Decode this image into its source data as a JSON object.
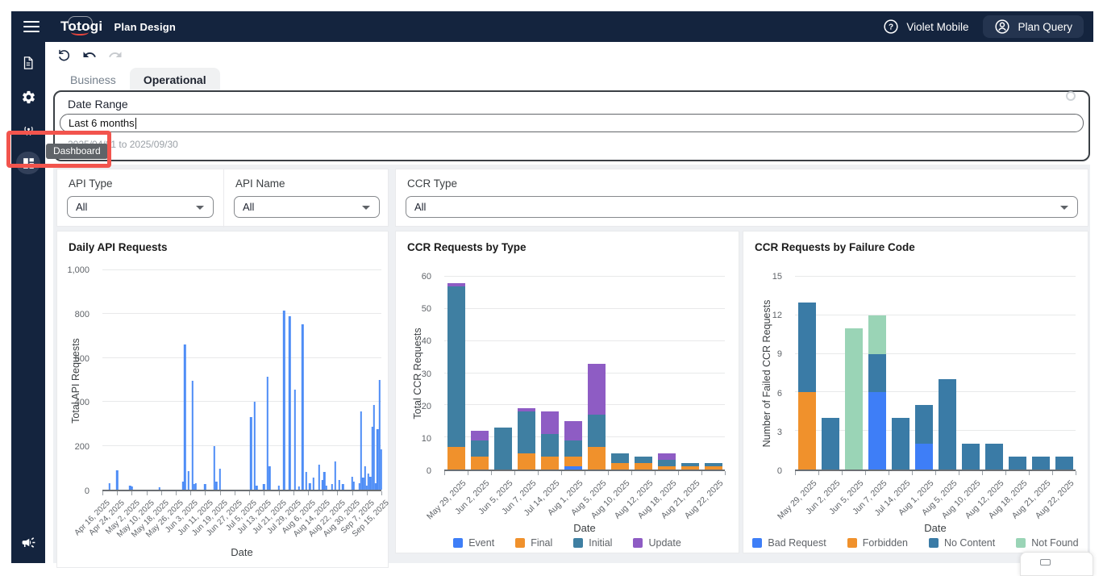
{
  "topbar": {
    "brand": "Totogi",
    "app_title": "Plan Design",
    "tenant": "Violet Mobile",
    "account": "Plan Query"
  },
  "sidebar": {
    "tooltip": "Dashboard"
  },
  "tabs": {
    "business": "Business",
    "operational": "Operational"
  },
  "date_range": {
    "label": "Date Range",
    "value": "Last 6 months",
    "helper": "2025/04/01 to 2025/09/30"
  },
  "filters": {
    "api_type": {
      "label": "API Type",
      "value": "All"
    },
    "api_name": {
      "label": "API Name",
      "value": "All"
    },
    "ccr_type": {
      "label": "CCR Type",
      "value": "All"
    }
  },
  "chart_data": [
    {
      "type": "bar",
      "title": "Daily API Requests",
      "xlabel": "Date",
      "ylabel": "Total API Requests",
      "ylim": [
        0,
        1000
      ],
      "yticks": [
        0,
        200,
        400,
        600,
        800,
        1000
      ],
      "grid": true,
      "legend_position": "none",
      "color": "#4e8df6",
      "days_total": 153,
      "tick_every_days": 8,
      "tick_labels": [
        "Apr 16, 2025",
        "Apr 24, 2025",
        "May 2, 2025",
        "May 10, 2025",
        "May 18, 2025",
        "May 26, 2025",
        "Jun 3, 2025",
        "Jun 11, 2025",
        "Jun 19, 2025",
        "Jun 27, 2025",
        "Jul 5, 2025",
        "Jul 13, 2025",
        "Jul 21, 2025",
        "Jul 29, 2025",
        "Aug 6, 2025",
        "Aug 14, 2025",
        "Aug 22, 2025",
        "Aug 30, 2025",
        "Sep 7, 2025",
        "Sep 15, 2025"
      ],
      "bars": [
        [
          4,
          30
        ],
        [
          8,
          90
        ],
        [
          15,
          20
        ],
        [
          16,
          14
        ],
        [
          31,
          10
        ],
        [
          44,
          35
        ],
        [
          45,
          660
        ],
        [
          47,
          85
        ],
        [
          49,
          495
        ],
        [
          50,
          25
        ],
        [
          51,
          30
        ],
        [
          56,
          25
        ],
        [
          61,
          200
        ],
        [
          62,
          35
        ],
        [
          64,
          95
        ],
        [
          81,
          330
        ],
        [
          83,
          400
        ],
        [
          84,
          20
        ],
        [
          88,
          25
        ],
        [
          90,
          515
        ],
        [
          91,
          105
        ],
        [
          96,
          20
        ],
        [
          99,
          815
        ],
        [
          102,
          790
        ],
        [
          105,
          455
        ],
        [
          107,
          15
        ],
        [
          109,
          755
        ],
        [
          111,
          80
        ],
        [
          113,
          30
        ],
        [
          115,
          55
        ],
        [
          118,
          115
        ],
        [
          120,
          45
        ],
        [
          121,
          80
        ],
        [
          122,
          20
        ],
        [
          125,
          25
        ],
        [
          127,
          130
        ],
        [
          129,
          45
        ],
        [
          131,
          25
        ],
        [
          136,
          60
        ],
        [
          137,
          35
        ],
        [
          140,
          30
        ],
        [
          141,
          355
        ],
        [
          142,
          55
        ],
        [
          143,
          105
        ],
        [
          144,
          20
        ],
        [
          145,
          75
        ],
        [
          146,
          60
        ],
        [
          147,
          285
        ],
        [
          148,
          385
        ],
        [
          149,
          30
        ],
        [
          150,
          275
        ],
        [
          151,
          500
        ],
        [
          152,
          185
        ]
      ]
    },
    {
      "type": "bar",
      "stacked": true,
      "title": "CCR Requests by Type",
      "xlabel": "Date",
      "ylabel": "Total CCR Requests",
      "ylim": [
        0,
        60
      ],
      "yticks": [
        0,
        10,
        20,
        30,
        40,
        50,
        60
      ],
      "grid": true,
      "legend_position": "bottom",
      "categories": [
        "May 29, 2025",
        "Jun 2, 2025",
        "Jun 5, 2025",
        "Jun 7, 2025",
        "Jul 14, 2025",
        "Aug 1, 2025",
        "Aug 5, 2025",
        "Aug 10, 2025",
        "Aug 12, 2025",
        "Aug 18, 2025",
        "Aug 21, 2025",
        "Aug 22, 2025"
      ],
      "series": [
        {
          "name": "Event",
          "color": "#3e7ef7",
          "values": [
            0,
            0,
            0,
            0,
            0,
            1,
            0,
            0,
            0,
            0,
            0,
            0
          ]
        },
        {
          "name": "Final",
          "color": "#f0912c",
          "values": [
            7,
            4,
            0,
            5,
            4,
            3,
            7,
            2,
            2,
            1,
            1,
            1
          ]
        },
        {
          "name": "Initial",
          "color": "#3f7fa2",
          "values": [
            50,
            5,
            13,
            13,
            7,
            5,
            10,
            3,
            2,
            2,
            1,
            1
          ]
        },
        {
          "name": "Update",
          "color": "#8e5cc4",
          "values": [
            1,
            3,
            0,
            1,
            7,
            6,
            16,
            0,
            0,
            2,
            0,
            0
          ]
        }
      ]
    },
    {
      "type": "bar",
      "stacked": true,
      "title": "CCR Requests by Failure Code",
      "xlabel": "Date",
      "ylabel": "Number of Failed CCR Requests",
      "ylim": [
        0,
        15
      ],
      "yticks": [
        0,
        3,
        6,
        9,
        12,
        15
      ],
      "grid": true,
      "legend_position": "bottom",
      "categories": [
        "May 29, 2025",
        "Jun 2, 2025",
        "Jun 5, 2025",
        "Jun 7, 2025",
        "Jul 14, 2025",
        "Aug 1, 2025",
        "Aug 5, 2025",
        "Aug 10, 2025",
        "Aug 12, 2025",
        "Aug 18, 2025",
        "Aug 21, 2025",
        "Aug 22, 2025"
      ],
      "series": [
        {
          "name": "Bad Request",
          "color": "#3e7ef7",
          "values": [
            0,
            0,
            0,
            6,
            0,
            2,
            0,
            0,
            0,
            0,
            0,
            0
          ]
        },
        {
          "name": "Forbidden",
          "color": "#f0912c",
          "values": [
            6,
            0,
            0,
            0,
            0,
            0,
            0,
            0,
            0,
            0,
            0,
            0
          ]
        },
        {
          "name": "No Content",
          "color": "#3a7ba6",
          "values": [
            7,
            4,
            0,
            3,
            4,
            3,
            7,
            2,
            2,
            1,
            1,
            1
          ]
        },
        {
          "name": "Not Found",
          "color": "#9ad4b6",
          "values": [
            0,
            0,
            11,
            3,
            0,
            0,
            0,
            0,
            0,
            0,
            0,
            0
          ]
        }
      ]
    }
  ]
}
